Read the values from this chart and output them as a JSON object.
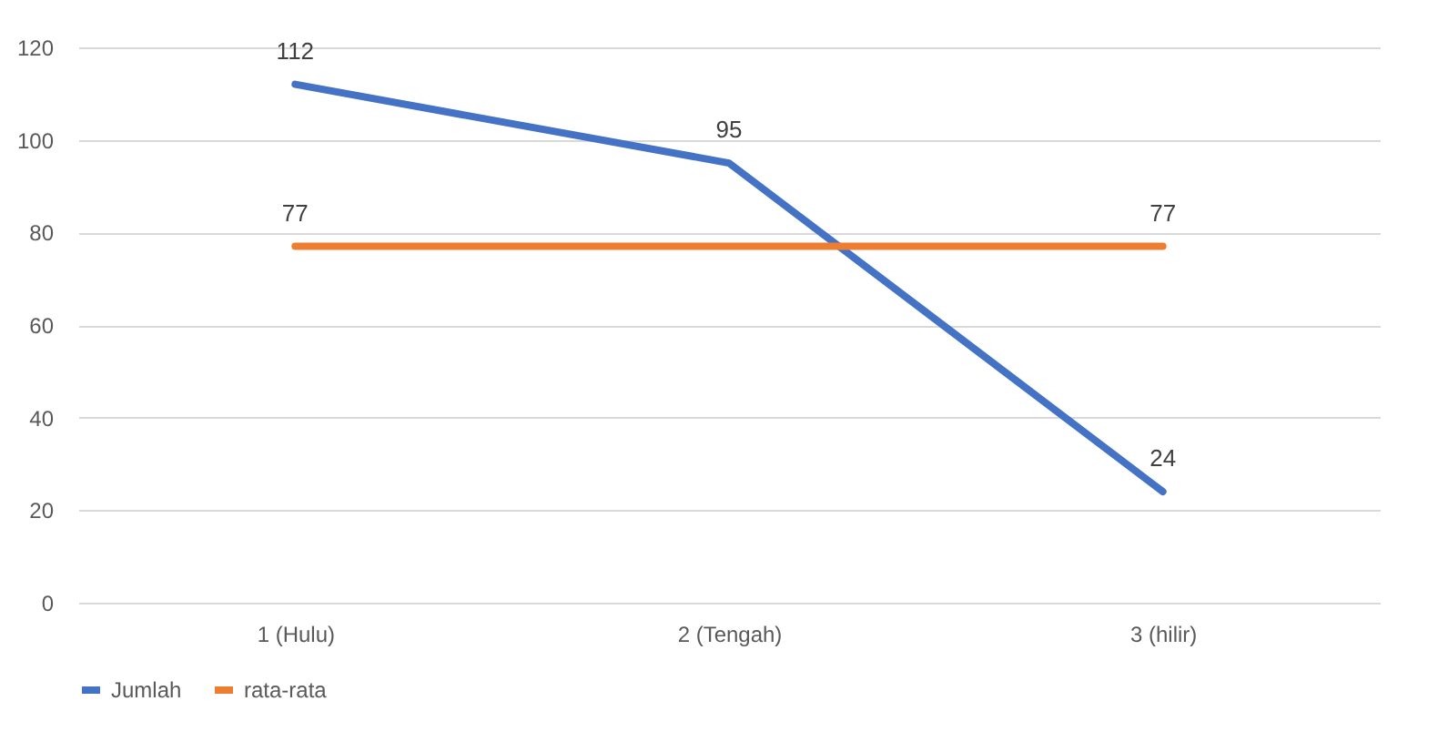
{
  "chart_data": {
    "type": "line",
    "categories": [
      "1 (Hulu)",
      "2 (Tengah)",
      "3 (hilir)"
    ],
    "series": [
      {
        "name": "Jumlah",
        "color": "#4472c4",
        "values": [
          112,
          95,
          24
        ],
        "value_labels": [
          "112",
          "95",
          "24"
        ]
      },
      {
        "name": "rata-rata",
        "color": "#ed7d31",
        "values": [
          77,
          77,
          77
        ],
        "value_labels": [
          "77",
          null,
          "77"
        ]
      }
    ],
    "ylim": [
      0,
      120
    ],
    "yticks": [
      0,
      20,
      40,
      60,
      80,
      100,
      120
    ],
    "grid": "y",
    "legend": "bottom"
  }
}
